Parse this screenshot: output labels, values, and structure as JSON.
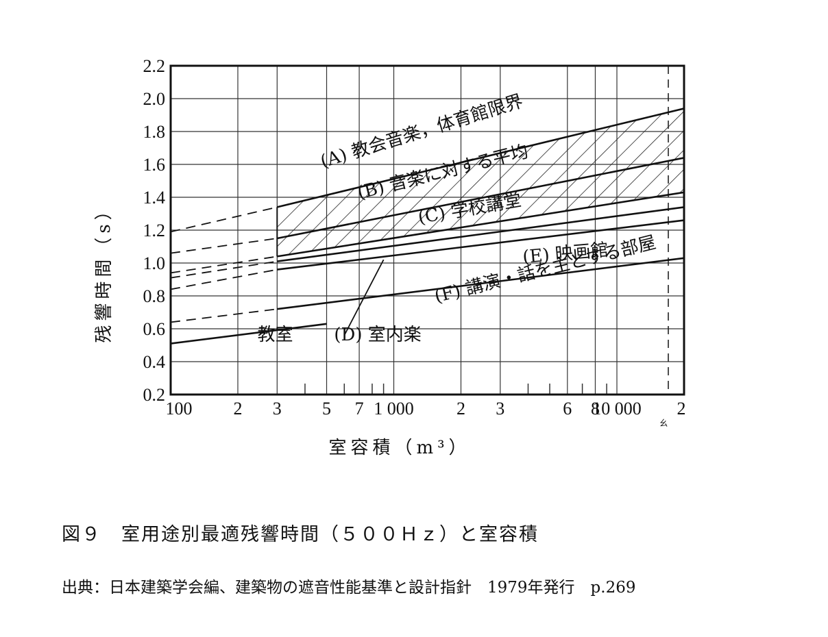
{
  "figure": {
    "caption": "図９　室用途別最適残響時間（５００Ｈｚ）と室容積",
    "source": "出典：日本建築学会編、建築物の遮音性能基準と設計指針　1979年発行　p.269"
  },
  "chart_data": {
    "type": "line",
    "xscale": "log",
    "xlim": [
      100,
      20000
    ],
    "ylim": [
      0.2,
      2.2
    ],
    "xlabel": "室容積（m³）",
    "ylabel": "残響時間（s）",
    "xticks": [
      {
        "v": 100,
        "label": "100"
      },
      {
        "v": 200,
        "label": "2"
      },
      {
        "v": 300,
        "label": "3"
      },
      {
        "v": 500,
        "label": "5"
      },
      {
        "v": 700,
        "label": "7"
      },
      {
        "v": 1000,
        "label": "1 000"
      },
      {
        "v": 2000,
        "label": "2"
      },
      {
        "v": 3000,
        "label": "3"
      },
      {
        "v": 6000,
        "label": "6"
      },
      {
        "v": 8000,
        "label": "8"
      },
      {
        "v": 10000,
        "label": "10 000"
      },
      {
        "v": 20000,
        "label": "2"
      }
    ],
    "yticks": [
      "0.2",
      "0.4",
      "0.6",
      "0.8",
      "1.0",
      "1.2",
      "1.4",
      "1.6",
      "1.8",
      "2.0",
      "2.2"
    ],
    "minor_marker": "ㄠ",
    "series": [
      {
        "name": "(A) 教会音楽，体育館限界",
        "solid": [
          [
            300,
            1.34
          ],
          [
            20000,
            1.94
          ]
        ],
        "dashed": [
          [
            100,
            1.19
          ],
          [
            300,
            1.34
          ]
        ]
      },
      {
        "name": "(B) 音楽に対する平均",
        "solid": [
          [
            300,
            1.15
          ],
          [
            20000,
            1.64
          ]
        ],
        "dashed": [
          [
            100,
            1.06
          ],
          [
            300,
            1.15
          ]
        ]
      },
      {
        "name": "(C) 学校講堂",
        "solid": [
          [
            300,
            1.04
          ],
          [
            20000,
            1.43
          ]
        ],
        "dashed": [
          [
            100,
            0.94
          ],
          [
            300,
            1.04
          ]
        ]
      },
      {
        "name": "(D) 室内楽",
        "solid": [
          [
            300,
            1.01
          ],
          [
            20000,
            1.34
          ]
        ],
        "dashed": [
          [
            100,
            0.91
          ],
          [
            300,
            1.01
          ]
        ]
      },
      {
        "name": "(E) 映画館",
        "solid": [
          [
            300,
            0.96
          ],
          [
            20000,
            1.26
          ]
        ],
        "dashed": [
          [
            100,
            0.84
          ],
          [
            300,
            0.96
          ]
        ]
      },
      {
        "name": "(F) 講演・話を主とする部屋",
        "solid": [
          [
            300,
            0.72
          ],
          [
            20000,
            1.03
          ]
        ],
        "dashed": [
          [
            100,
            0.64
          ],
          [
            300,
            0.72
          ]
        ]
      },
      {
        "name": "教室",
        "solid": [
          [
            100,
            0.51
          ],
          [
            500,
            0.63
          ]
        ]
      }
    ],
    "hatched_bands": [
      [
        "(A) 教会音楽，体育館限界",
        "(B) 音楽に対する平均"
      ],
      [
        "(B) 音楽に対する平均",
        "(C) 学校講堂"
      ]
    ],
    "label_positions": [
      {
        "text": "(A) 教会音楽，体育館限界",
        "x": 480,
        "y": 1.58,
        "angle": -17
      },
      {
        "text": "(B) 音楽に対する平均",
        "x": 700,
        "y": 1.39,
        "angle": -14
      },
      {
        "text": "(C) 学校講堂",
        "x": 1300,
        "y": 1.24,
        "angle": -10
      },
      {
        "text": "(E) 映画館",
        "x": 3800,
        "y": 1.0,
        "angle": -5
      },
      {
        "text": "(F) 講演・話を主とする部屋",
        "x": 1550,
        "y": 0.76,
        "angle": -14
      },
      {
        "text": "(D) 室内楽",
        "x": 540,
        "y": 0.53,
        "angle": 0
      },
      {
        "text": "教室",
        "x": 245,
        "y": 0.53,
        "angle": 0
      }
    ]
  }
}
